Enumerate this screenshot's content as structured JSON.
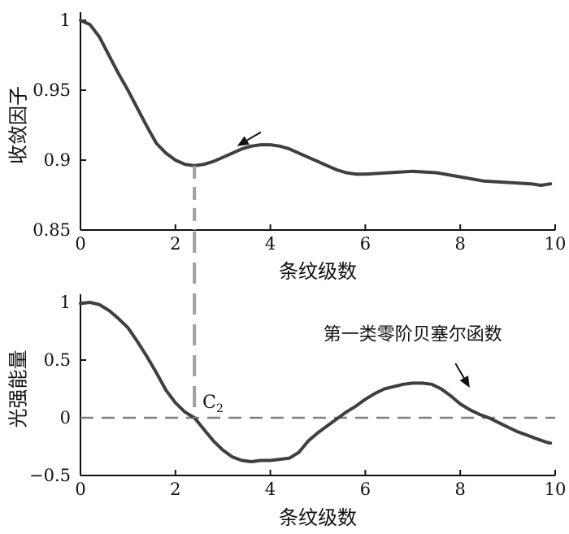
{
  "chart_data": [
    {
      "type": "line",
      "xlabel": "条纹级数",
      "ylabel": "收敛因子",
      "xlim": [
        0,
        10
      ],
      "ylim": [
        0.85,
        1.0
      ],
      "xticks": [
        "0",
        "2",
        "4",
        "6",
        "8",
        "10"
      ],
      "yticks": [
        "0.85",
        "0.9",
        "0.95",
        "1"
      ],
      "grid": false,
      "series": [
        {
          "color": "#3f3f3f",
          "x": [
            0,
            0.2,
            0.4,
            0.6,
            0.8,
            1.0,
            1.2,
            1.4,
            1.6,
            1.8,
            2.0,
            2.2,
            2.4,
            2.6,
            2.8,
            3.0,
            3.2,
            3.4,
            3.6,
            3.8,
            4.0,
            4.2,
            4.4,
            4.6,
            4.8,
            5.0,
            5.2,
            5.4,
            5.6,
            5.8,
            6.0,
            6.5,
            7.0,
            7.5,
            8.0,
            8.5,
            9.0,
            9.5,
            9.7,
            9.9
          ],
          "y": [
            1.0,
            0.997,
            0.988,
            0.975,
            0.962,
            0.95,
            0.937,
            0.924,
            0.912,
            0.905,
            0.9,
            0.897,
            0.896,
            0.897,
            0.899,
            0.902,
            0.905,
            0.908,
            0.91,
            0.911,
            0.911,
            0.91,
            0.908,
            0.905,
            0.902,
            0.899,
            0.896,
            0.893,
            0.891,
            0.89,
            0.89,
            0.891,
            0.892,
            0.891,
            0.888,
            0.885,
            0.884,
            0.883,
            0.882,
            0.883
          ]
        }
      ],
      "annotations": [
        {
          "type": "arrow",
          "x": 3.3,
          "y": 0.91,
          "from_x": 3.8,
          "from_y": 0.92
        },
        {
          "type": "vline",
          "x": 2.4,
          "color": "#a0a0a0",
          "style": "dashed"
        }
      ]
    },
    {
      "type": "line",
      "xlabel": "条纹级数",
      "ylabel": "光强能量",
      "xlim": [
        0,
        10
      ],
      "ylim": [
        -0.5,
        1.0
      ],
      "xticks": [
        "0",
        "2",
        "4",
        "6",
        "8",
        "10"
      ],
      "yticks": [
        "−0.5",
        "0",
        "0.5",
        "1"
      ],
      "grid": false,
      "series": [
        {
          "color": "#3f3f3f",
          "x": [
            0,
            0.2,
            0.4,
            0.6,
            0.8,
            1.0,
            1.2,
            1.4,
            1.6,
            1.8,
            2.0,
            2.2,
            2.4,
            2.6,
            2.8,
            3.0,
            3.2,
            3.4,
            3.6,
            3.8,
            4.0,
            4.2,
            4.4,
            4.6,
            4.8,
            5.0,
            5.2,
            5.4,
            5.6,
            5.8,
            6.0,
            6.2,
            6.4,
            6.6,
            6.8,
            7.0,
            7.2,
            7.4,
            7.6,
            7.8,
            8.0,
            8.2,
            8.4,
            8.6,
            8.8,
            9.0,
            9.2,
            9.4,
            9.6,
            9.8,
            9.9
          ],
          "y": [
            0.99,
            1.0,
            0.98,
            0.93,
            0.86,
            0.78,
            0.66,
            0.53,
            0.39,
            0.24,
            0.13,
            0.05,
            0.0,
            -0.1,
            -0.2,
            -0.28,
            -0.34,
            -0.37,
            -0.38,
            -0.37,
            -0.37,
            -0.36,
            -0.35,
            -0.3,
            -0.2,
            -0.13,
            -0.07,
            -0.01,
            0.05,
            0.1,
            0.16,
            0.21,
            0.25,
            0.27,
            0.29,
            0.3,
            0.3,
            0.29,
            0.25,
            0.19,
            0.12,
            0.07,
            0.03,
            0.0,
            -0.04,
            -0.08,
            -0.12,
            -0.15,
            -0.18,
            -0.21,
            -0.22
          ]
        }
      ],
      "annotations": [
        {
          "type": "hline",
          "y": 0,
          "color": "#808080",
          "style": "dashed"
        },
        {
          "type": "vline",
          "x": 2.4,
          "color": "#a0a0a0",
          "style": "dashed"
        },
        {
          "type": "label",
          "text_main": "C",
          "text_sub": "2",
          "x": 2.4,
          "y": 0.0
        },
        {
          "type": "label",
          "text": "第一类零阶贝塞尔函数",
          "x": 7.0,
          "y": 0.73
        },
        {
          "type": "arrow",
          "x": 8.2,
          "y": 0.26,
          "from_x": 7.9,
          "from_y": 0.47
        }
      ]
    }
  ]
}
